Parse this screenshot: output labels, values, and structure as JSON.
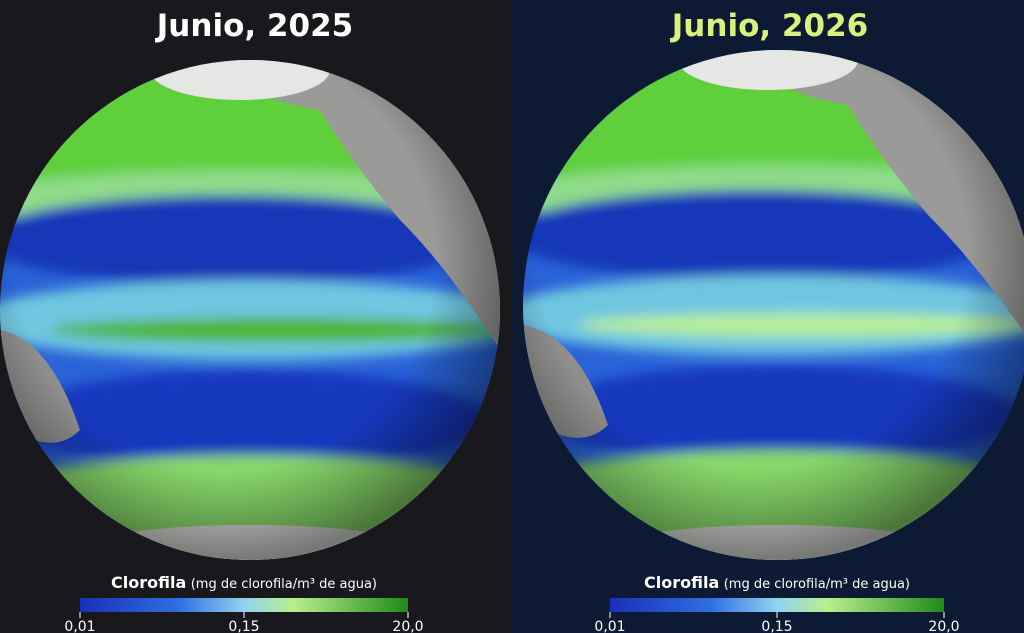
{
  "panels": [
    {
      "title": "Junio, 2025",
      "legend": {
        "title": "Clorofila",
        "units": "(mg de clorofila/m³ de agua)",
        "ticks": [
          "0,01",
          "0,15",
          "20,0"
        ]
      }
    },
    {
      "title": "Junio, 2026",
      "legend": {
        "title": "Clorofila",
        "units": "(mg de clorofila/m³ de agua)",
        "ticks": [
          "0,01",
          "0,15",
          "20,0"
        ]
      }
    }
  ]
}
